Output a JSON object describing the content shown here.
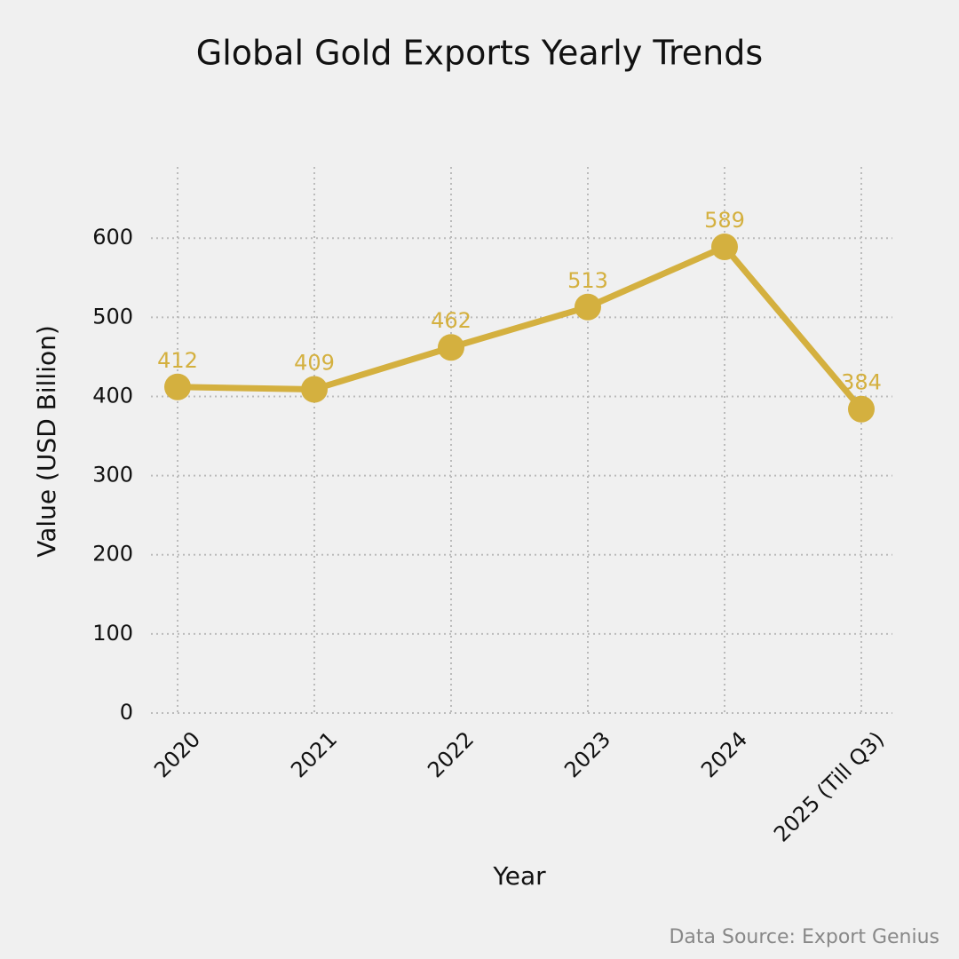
{
  "chart_data": {
    "type": "line",
    "title": "Global Gold Exports Yearly Trends",
    "x_label": "Year",
    "y_label": "Value (USD Billion)",
    "source": "Data Source: Export Genius",
    "categories": [
      "2020",
      "2021",
      "2022",
      "2023",
      "2024",
      "2025 (Till Q3)"
    ],
    "series": [
      {
        "name": "Value",
        "color": "#d4b03f",
        "values": [
          412,
          409,
          462,
          513,
          589,
          384
        ]
      }
    ],
    "ylim": [
      0,
      690
    ],
    "yticks": [
      0,
      100,
      200,
      300,
      400,
      500,
      600
    ],
    "grid": true
  }
}
